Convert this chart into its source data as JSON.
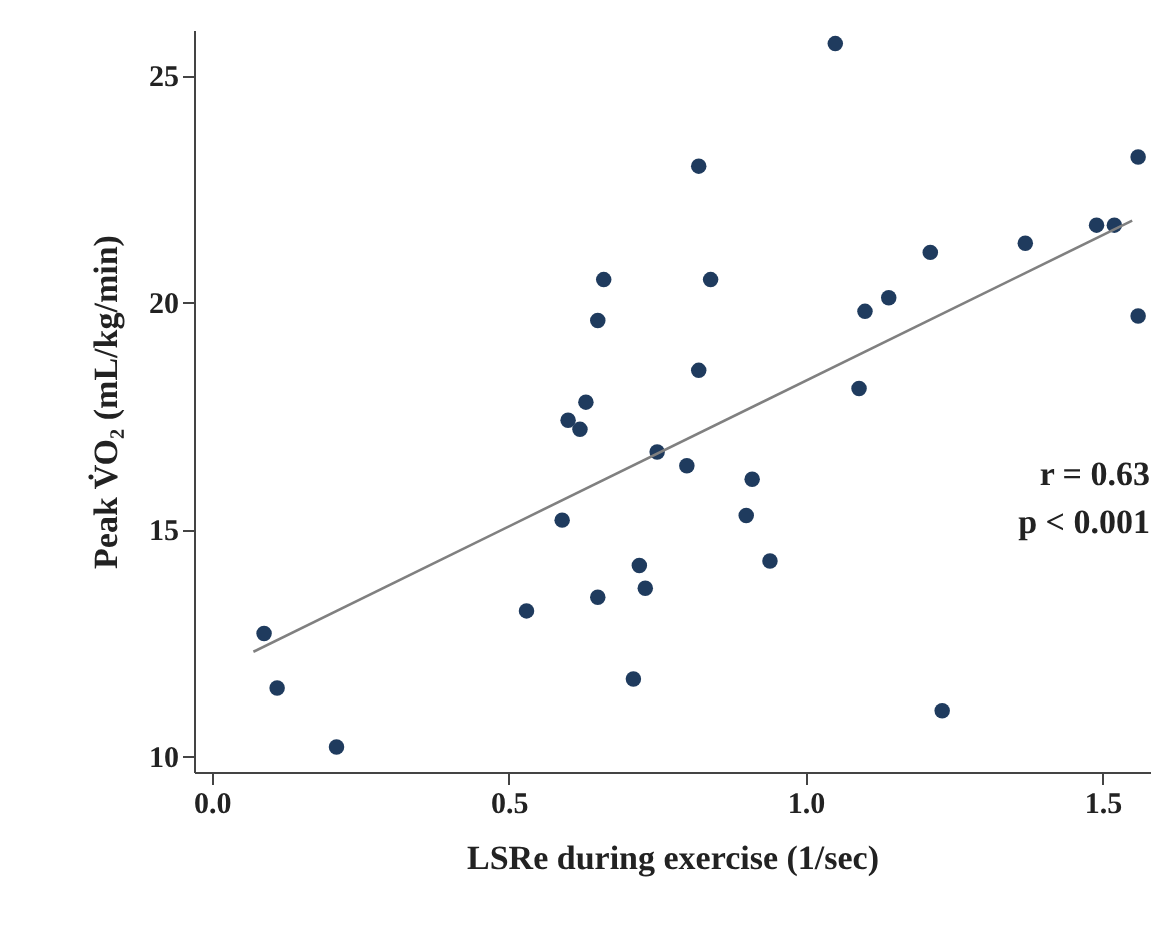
{
  "chart_data": {
    "type": "scatter",
    "xlabel": "LSRe during exercise (1/sec)",
    "ylabel": "Peak V̇O₂ (mL/kg/min)",
    "xlim": [
      -0.03,
      1.58
    ],
    "ylim": [
      9.65,
      26.0
    ],
    "xticks": [
      {
        "value": 0,
        "label": "0.0"
      },
      0.5,
      {
        "value": 1,
        "label": "1.0"
      },
      1.5
    ],
    "yticks": [
      10,
      15,
      20,
      25
    ],
    "grid": false,
    "series": [
      {
        "marker": "circle",
        "color": "#1f3b5e",
        "x": [
          0.088,
          0.11,
          0.21,
          0.53,
          0.59,
          0.6,
          0.62,
          0.63,
          0.65,
          0.66,
          0.65,
          0.71,
          0.72,
          0.73,
          0.75,
          0.8,
          0.82,
          0.82,
          0.84,
          0.9,
          0.91,
          0.94,
          1.05,
          1.09,
          1.1,
          1.14,
          1.21,
          1.23,
          1.37,
          1.49,
          1.52,
          1.56,
          1.56
        ],
        "values": [
          12.7,
          11.5,
          10.2,
          13.2,
          15.2,
          17.4,
          17.2,
          17.8,
          19.6,
          20.5,
          13.5,
          11.7,
          14.2,
          13.7,
          16.7,
          16.4,
          18.5,
          23.0,
          20.5,
          15.3,
          16.1,
          14.3,
          25.7,
          18.1,
          19.8,
          20.1,
          21.1,
          11.0,
          21.3,
          21.7,
          21.7,
          23.2,
          19.7
        ]
      },
      {
        "type": "line",
        "color": "#808080",
        "x": [
          0.07,
          1.55
        ],
        "values": [
          12.3,
          21.8
        ]
      }
    ],
    "annotations": [
      "r = 0.63",
      "p < 0.001"
    ]
  }
}
